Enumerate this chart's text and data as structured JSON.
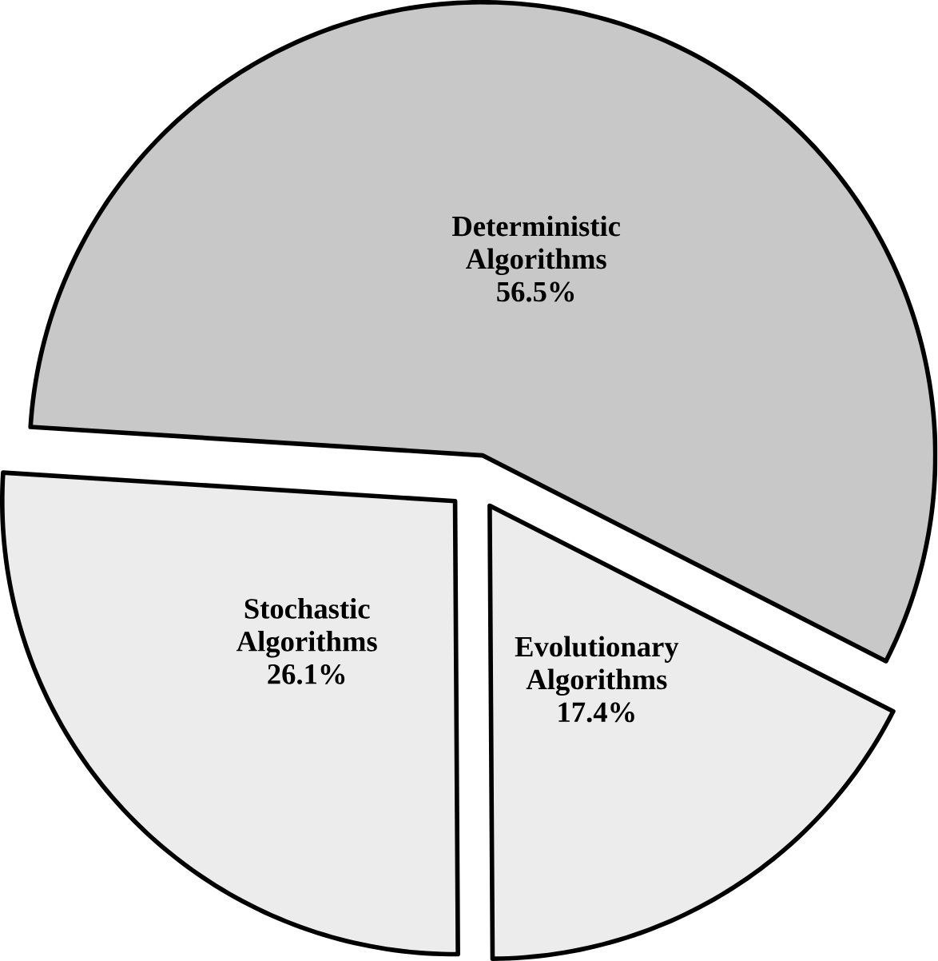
{
  "chart_data": {
    "type": "pie",
    "categories": [
      "Deterministic Algorithms",
      "Stochastic Algorithms",
      "Evolutionary Algorithms"
    ],
    "values": [
      56.5,
      26.1,
      17.4
    ],
    "value_labels": [
      "56.5%",
      "26.1%",
      "17.4%"
    ],
    "colors": [
      "#c8c8c8",
      "#ececec",
      "#ececec"
    ],
    "data_labels": true
  }
}
